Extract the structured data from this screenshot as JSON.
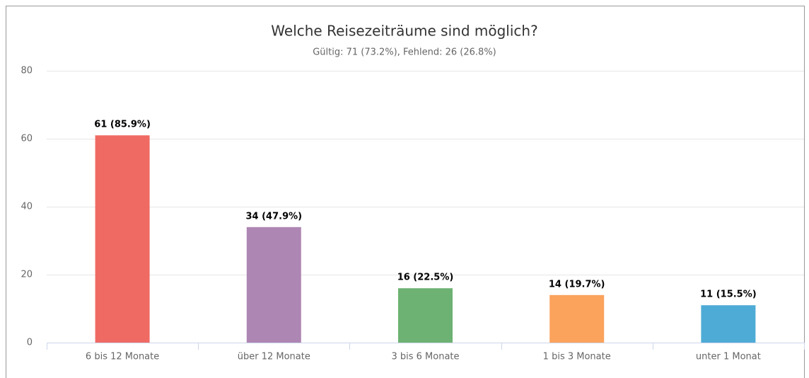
{
  "chart_data": {
    "type": "bar",
    "title": "Welche Reisezeiträume sind möglich?",
    "subtitle": "Gültig: 71 (73.2%), Fehlend: 26 (26.8%)",
    "categories": [
      "6 bis 12 Monate",
      "über 12 Monate",
      "3 bis 6 Monate",
      "1 bis 3 Monate",
      "unter 1 Monat"
    ],
    "values": [
      61,
      34,
      16,
      14,
      11
    ],
    "value_labels": [
      "61 (85.9%)",
      "34 (47.9%)",
      "16 (22.5%)",
      "14 (19.7%)",
      "11 (15.5%)"
    ],
    "colors": [
      "#f06a64",
      "#ae86b3",
      "#6db272",
      "#fba25c",
      "#4eabd6"
    ],
    "ylim": [
      0,
      80
    ],
    "yticks": [
      0,
      20,
      40,
      60,
      80
    ],
    "grid": true
  }
}
